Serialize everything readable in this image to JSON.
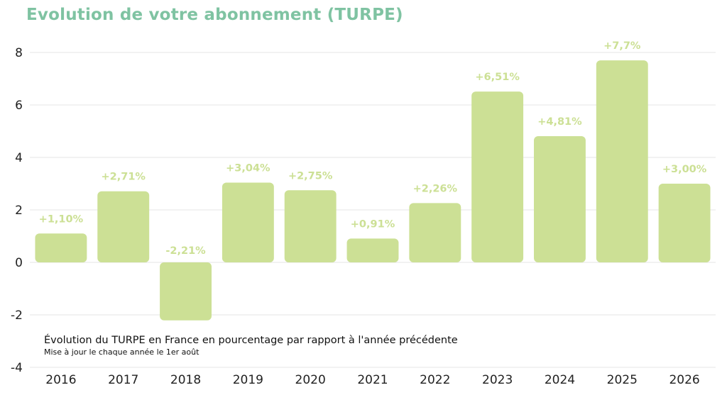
{
  "colors": {
    "title": "#7fc3a2",
    "bar": "#cce095",
    "label": "#cce095"
  },
  "chart_data": {
    "type": "bar",
    "title": "Evolution de votre abonnement (TURPE)",
    "categories": [
      "2016",
      "2017",
      "2018",
      "2019",
      "2020",
      "2021",
      "2022",
      "2023",
      "2024",
      "2025",
      "2026"
    ],
    "values": [
      1.1,
      2.71,
      -2.21,
      3.04,
      2.75,
      0.91,
      2.26,
      6.51,
      4.81,
      7.7,
      3.0
    ],
    "data_labels": [
      "+1,10%",
      "+2,71%",
      "-2,21%",
      "+3,04%",
      "+2,75%",
      "+0,91%",
      "+2,26%",
      "+6,51%",
      "+4,81%",
      "+7,7%",
      "+3,00%"
    ],
    "yticks": [
      8,
      6,
      4,
      2,
      0,
      -2,
      -4
    ],
    "ylim": [
      -4,
      8
    ],
    "grid": true,
    "xlabel": "",
    "ylabel": "",
    "caption": "Évolution du TURPE en France en pourcentage par rapport à l'année précédente",
    "subcaption": "Mise à jour le chaque année le 1er août"
  }
}
